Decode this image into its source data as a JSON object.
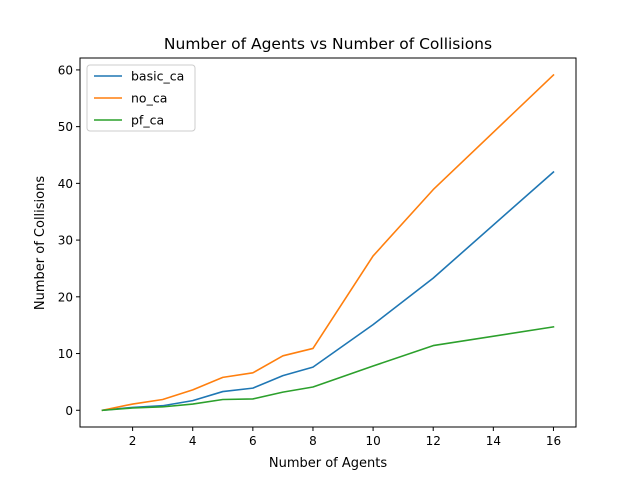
{
  "chart_data": {
    "type": "line",
    "title": "Number of Agents vs Number of Collisions",
    "xlabel": "Number of Agents",
    "ylabel": "Number of Collisions",
    "x": [
      1,
      2,
      3,
      4,
      5,
      6,
      7,
      8,
      10,
      12,
      16
    ],
    "xlim": [
      0.25,
      16.75
    ],
    "ylim": [
      -2.95,
      62.1
    ],
    "xticks": [
      2,
      4,
      6,
      8,
      10,
      12,
      14,
      16
    ],
    "yticks": [
      0,
      10,
      20,
      30,
      40,
      50,
      60
    ],
    "grid": false,
    "legend_position": "upper-left",
    "series": [
      {
        "name": "basic_ca",
        "color": "#1f77b4",
        "values": [
          0,
          0.5,
          0.8,
          1.7,
          3.3,
          3.9,
          6.1,
          7.6,
          15.1,
          23.3,
          42.0
        ]
      },
      {
        "name": "no_ca",
        "color": "#ff7f0e",
        "values": [
          0,
          1.1,
          1.9,
          3.6,
          5.8,
          6.6,
          9.6,
          10.9,
          27.2,
          38.9,
          59.1
        ]
      },
      {
        "name": "pf_ca",
        "color": "#2ca02c",
        "values": [
          0,
          0.4,
          0.6,
          1.1,
          1.9,
          2.0,
          3.2,
          4.1,
          7.8,
          11.4,
          14.7
        ]
      }
    ]
  }
}
